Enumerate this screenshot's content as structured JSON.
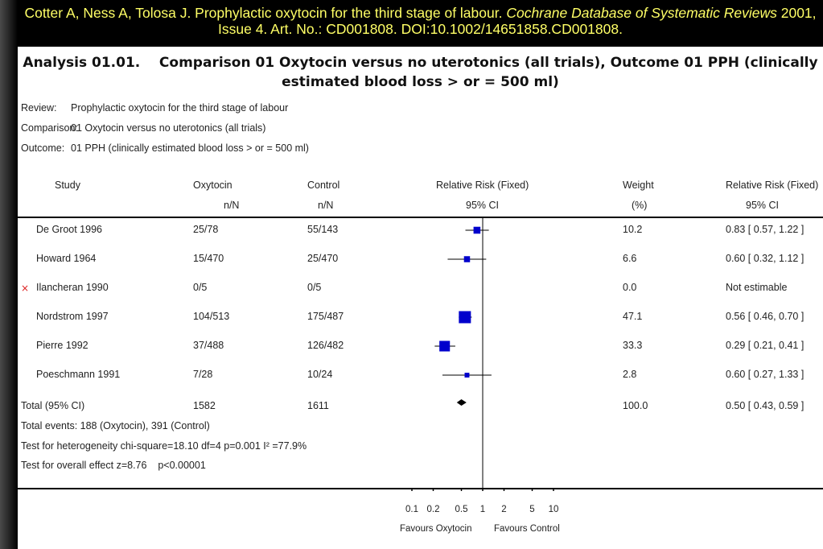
{
  "citation": {
    "authors_title": "Cotter A, Ness A, Tolosa J. Prophylactic oxytocin for the third stage of labour. ",
    "journal": "Cochrane Database of Systematic Reviews",
    "details": " 2001, Issue 4. Art. No.: CD001808. DOI:10.1002/14651858.CD001808."
  },
  "analysis": {
    "title_line1": "Analysis 01.01.    Comparison 01 Oxytocin versus no uterotonics (all trials), Outcome 01 PPH (clinically",
    "title_line2": "estimated blood loss > or = 500 ml)"
  },
  "meta": {
    "review_label": "Review:",
    "review_value": "Prophylactic oxytocin for the third stage of labour",
    "comparison_label": "Comparison:",
    "comparison_value": "01 Oxytocin versus no uterotonics (all trials)",
    "outcome_label": "Outcome:",
    "outcome_value": "01 PPH (clinically estimated blood loss > or = 500 ml)"
  },
  "columns": {
    "study": "Study",
    "oxytocin": "Oxytocin",
    "oxytocin_sub": "n/N",
    "control": "Control",
    "control_sub": "n/N",
    "rr": "Relative Risk (Fixed)",
    "rr_sub": "95% CI",
    "weight": "Weight",
    "weight_sub": "(%)",
    "rr2": "Relative Risk (Fixed)",
    "rr2_sub": "95% CI"
  },
  "studies": [
    {
      "name": "De Groot 1996",
      "oxytocin": "25/78",
      "control": "55/143",
      "weight": "10.2",
      "rr_text": "0.83 [ 0.57, 1.22 ]",
      "excluded": false
    },
    {
      "name": "Howard 1964",
      "oxytocin": "15/470",
      "control": "25/470",
      "weight": "6.6",
      "rr_text": "0.60 [ 0.32, 1.12 ]",
      "excluded": false
    },
    {
      "name": "Ilancheran 1990",
      "oxytocin": "0/5",
      "control": "0/5",
      "weight": "0.0",
      "rr_text": "Not estimable",
      "excluded": true
    },
    {
      "name": "Nordstrom 1997",
      "oxytocin": "104/513",
      "control": "175/487",
      "weight": "47.1",
      "rr_text": "0.56 [ 0.46, 0.70 ]",
      "excluded": false
    },
    {
      "name": "Pierre 1992",
      "oxytocin": "37/488",
      "control": "126/482",
      "weight": "33.3",
      "rr_text": "0.29 [ 0.21, 0.41 ]",
      "excluded": false
    },
    {
      "name": "Poeschmann 1991",
      "oxytocin": "7/28",
      "control": "10/24",
      "weight": "2.8",
      "rr_text": "0.60 [ 0.27, 1.33 ]",
      "excluded": false
    }
  ],
  "excluded_marker": "×",
  "total": {
    "name": "Total (95% CI)",
    "oxytocin": "1582",
    "control": "1611",
    "weight": "100.0",
    "rr_text": "0.50 [ 0.43, 0.59 ]"
  },
  "notes": {
    "events": "Total events: 188 (Oxytocin), 391 (Control)",
    "heterogeneity": "Test for heterogeneity chi-square=18.10 df=4 p=0.001 I² =77.9%",
    "overall": "Test for overall effect z=8.76    p<0.00001"
  },
  "axis": {
    "favours_left": "Favours Oxytocin",
    "favours_right": "Favours Control"
  },
  "chart_data": {
    "type": "scatter",
    "x_scale": "log",
    "xlim": [
      0.1,
      10
    ],
    "x_ticks": [
      0.1,
      0.2,
      0.5,
      1,
      2,
      5,
      10
    ],
    "x_tick_labels": [
      "0.1",
      "0.2",
      "0.5",
      "1",
      "2",
      "5",
      "10"
    ],
    "reference_line": 1,
    "series": [
      {
        "study": "De Groot 1996",
        "rr": 0.83,
        "ci_low": 0.57,
        "ci_high": 1.22,
        "weight": 10.2
      },
      {
        "study": "Howard 1964",
        "rr": 0.6,
        "ci_low": 0.32,
        "ci_high": 1.12,
        "weight": 6.6
      },
      {
        "study": "Ilancheran 1990",
        "rr": null,
        "ci_low": null,
        "ci_high": null,
        "weight": 0.0
      },
      {
        "study": "Nordstrom 1997",
        "rr": 0.56,
        "ci_low": 0.46,
        "ci_high": 0.7,
        "weight": 47.1
      },
      {
        "study": "Pierre 1992",
        "rr": 0.29,
        "ci_low": 0.21,
        "ci_high": 0.41,
        "weight": 33.3
      },
      {
        "study": "Poeschmann 1991",
        "rr": 0.6,
        "ci_low": 0.27,
        "ci_high": 1.33,
        "weight": 2.8
      }
    ],
    "pooled": {
      "rr": 0.5,
      "ci_low": 0.43,
      "ci_high": 0.59
    },
    "colors": {
      "study_marker": "#0000cc",
      "pooled_marker": "#000000"
    }
  }
}
